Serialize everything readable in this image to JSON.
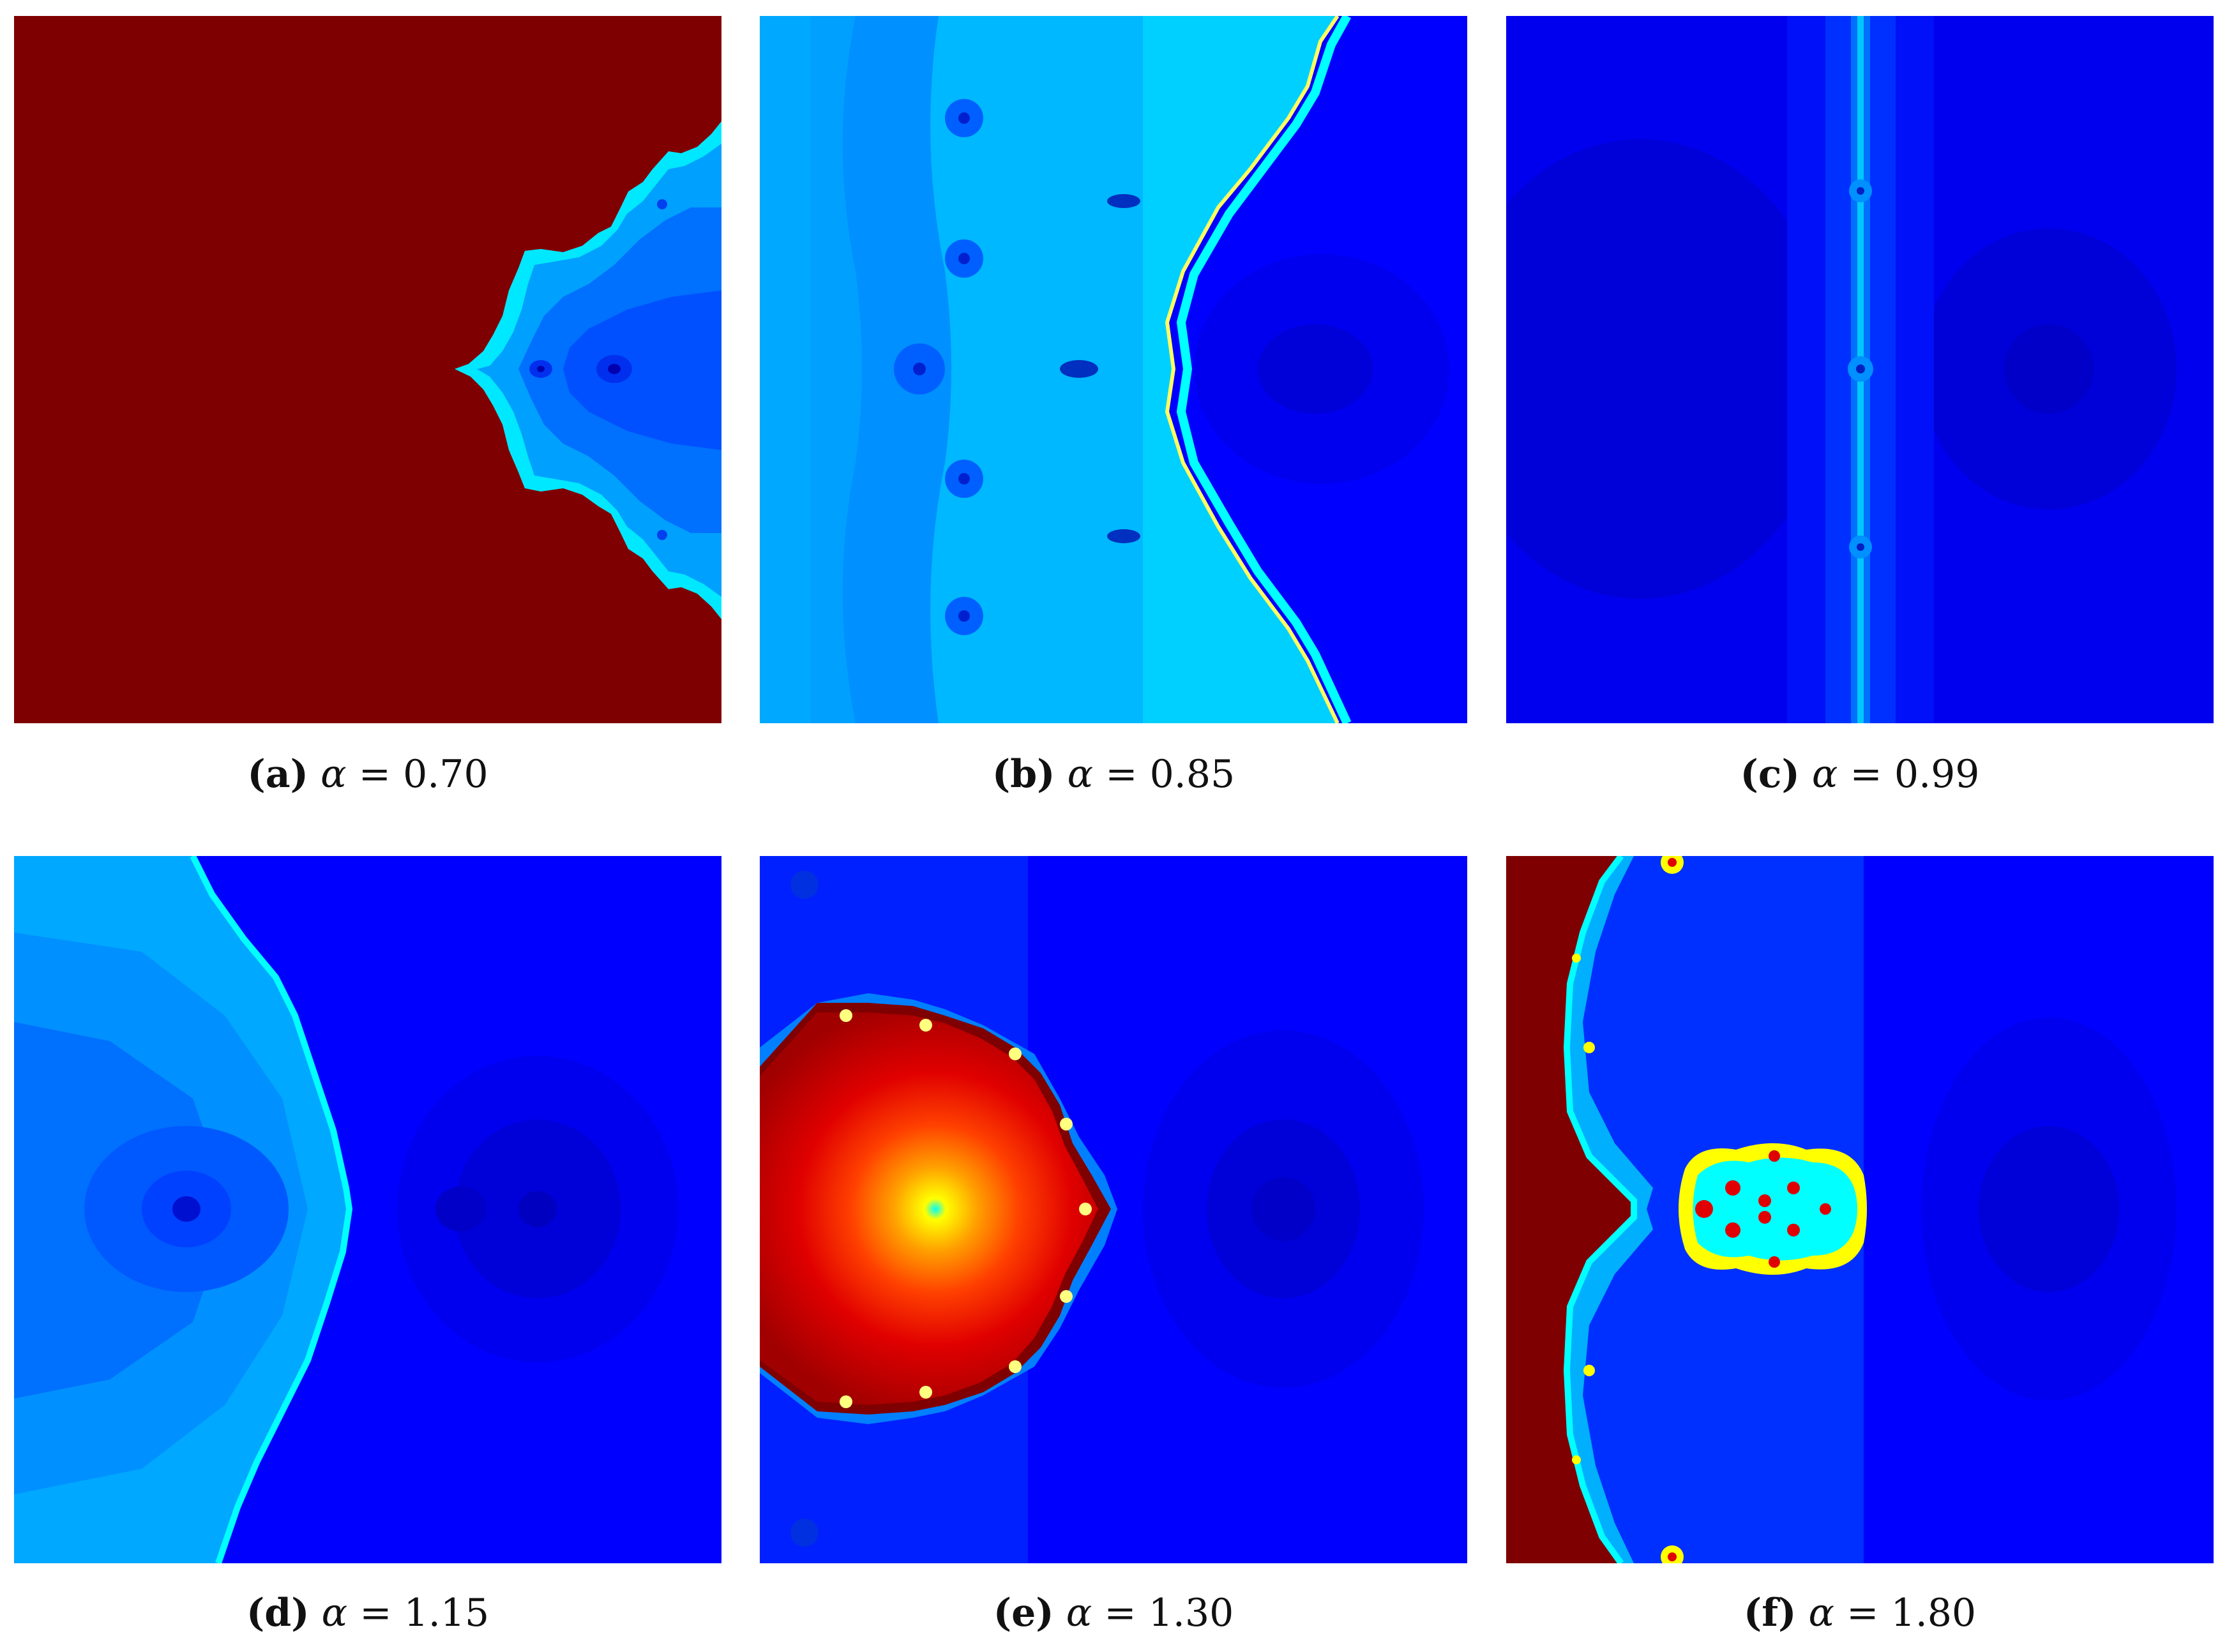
{
  "panels": [
    {
      "label": "a",
      "alpha_value": "0.70"
    },
    {
      "label": "b",
      "alpha_value": "0.85"
    },
    {
      "label": "c",
      "alpha_value": "0.99"
    },
    {
      "label": "d",
      "alpha_value": "1.15"
    },
    {
      "label": "e",
      "alpha_value": "1.30"
    },
    {
      "label": "f",
      "alpha_value": "1.80"
    }
  ],
  "symbols": {
    "alpha": "α",
    "equals": "=",
    "open": "(",
    "close": ")"
  },
  "colors": {
    "dark_red": "#7f0000",
    "red": "#e00000",
    "blue": "#0000ff",
    "dark_blue": "#0000d8",
    "mid_blue": "#0050ff",
    "light_blue": "#00a0ff",
    "cyan": "#00ffff",
    "yellow": "#ffff00"
  }
}
